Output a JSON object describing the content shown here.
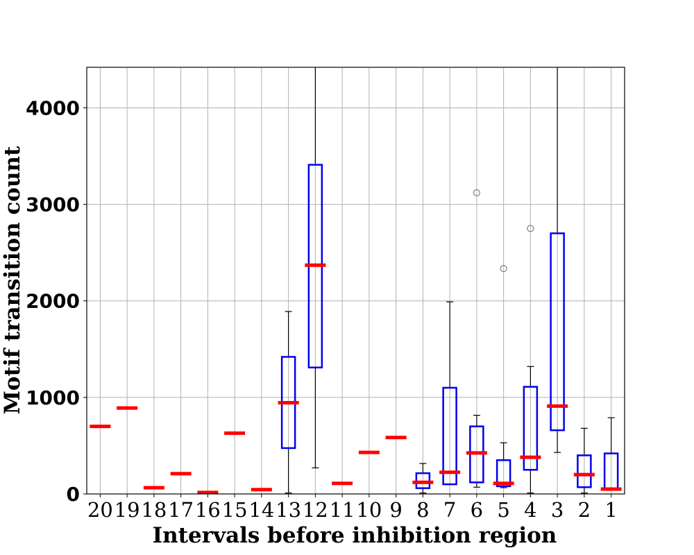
{
  "chart_data": {
    "type": "box",
    "title": "",
    "xlabel": "Intervals before inhibition region",
    "ylabel": "Motif transition count",
    "ylim": [
      0,
      4420
    ],
    "yticks": [
      0,
      1000,
      2000,
      3000,
      4000
    ],
    "grid": true,
    "legend": "none",
    "categories": [
      "20",
      "19",
      "18",
      "17",
      "16",
      "15",
      "14",
      "13",
      "12",
      "11",
      "10",
      "9",
      "8",
      "7",
      "6",
      "5",
      "4",
      "3",
      "2",
      "1"
    ],
    "boxes": [
      {
        "category": "20",
        "q1": 700,
        "median": 700,
        "q3": 700,
        "whisker_low": 700,
        "whisker_high": 700,
        "fliers": []
      },
      {
        "category": "19",
        "q1": 890,
        "median": 890,
        "q3": 890,
        "whisker_low": 890,
        "whisker_high": 890,
        "fliers": []
      },
      {
        "category": "18",
        "q1": 65,
        "median": 65,
        "q3": 65,
        "whisker_low": 65,
        "whisker_high": 65,
        "fliers": []
      },
      {
        "category": "17",
        "q1": 210,
        "median": 210,
        "q3": 210,
        "whisker_low": 210,
        "whisker_high": 210,
        "fliers": []
      },
      {
        "category": "16",
        "q1": 15,
        "median": 15,
        "q3": 15,
        "whisker_low": 15,
        "whisker_high": 15,
        "fliers": []
      },
      {
        "category": "15",
        "q1": 630,
        "median": 630,
        "q3": 630,
        "whisker_low": 630,
        "whisker_high": 630,
        "fliers": []
      },
      {
        "category": "14",
        "q1": 45,
        "median": 45,
        "q3": 45,
        "whisker_low": 45,
        "whisker_high": 45,
        "fliers": []
      },
      {
        "category": "13",
        "q1": 475,
        "median": 945,
        "q3": 1420,
        "whisker_low": 10,
        "whisker_high": 1890,
        "fliers": []
      },
      {
        "category": "12",
        "q1": 1310,
        "median": 2370,
        "q3": 3410,
        "whisker_low": 270,
        "whisker_high": 4800,
        "fliers": []
      },
      {
        "category": "11",
        "q1": 110,
        "median": 110,
        "q3": 110,
        "whisker_low": 110,
        "whisker_high": 110,
        "fliers": []
      },
      {
        "category": "10",
        "q1": 430,
        "median": 430,
        "q3": 430,
        "whisker_low": 430,
        "whisker_high": 430,
        "fliers": []
      },
      {
        "category": "9",
        "q1": 585,
        "median": 585,
        "q3": 585,
        "whisker_low": 585,
        "whisker_high": 585,
        "fliers": []
      },
      {
        "category": "8",
        "q1": 60,
        "median": 120,
        "q3": 215,
        "whisker_low": 10,
        "whisker_high": 315,
        "fliers": []
      },
      {
        "category": "7",
        "q1": 100,
        "median": 225,
        "q3": 1100,
        "whisker_low": 100,
        "whisker_high": 1990,
        "fliers": []
      },
      {
        "category": "6",
        "q1": 120,
        "median": 425,
        "q3": 700,
        "whisker_low": 70,
        "whisker_high": 815,
        "fliers": [
          3120
        ]
      },
      {
        "category": "5",
        "q1": 80,
        "median": 110,
        "q3": 350,
        "whisker_low": 65,
        "whisker_high": 530,
        "fliers": [
          2335
        ]
      },
      {
        "category": "4",
        "q1": 250,
        "median": 380,
        "q3": 1110,
        "whisker_low": 10,
        "whisker_high": 1320,
        "fliers": [
          2750
        ]
      },
      {
        "category": "3",
        "q1": 660,
        "median": 910,
        "q3": 2700,
        "whisker_low": 430,
        "whisker_high": 4800,
        "fliers": []
      },
      {
        "category": "2",
        "q1": 70,
        "median": 200,
        "q3": 400,
        "whisker_low": 10,
        "whisker_high": 680,
        "fliers": []
      },
      {
        "category": "1",
        "q1": 50,
        "median": 50,
        "q3": 420,
        "whisker_low": 50,
        "whisker_high": 790,
        "fliers": []
      }
    ],
    "colors": {
      "box": "#0000ee",
      "median": "#ff0000",
      "whisker": "#000000",
      "flier": "#808080",
      "grid": "#b0b0b0"
    }
  }
}
